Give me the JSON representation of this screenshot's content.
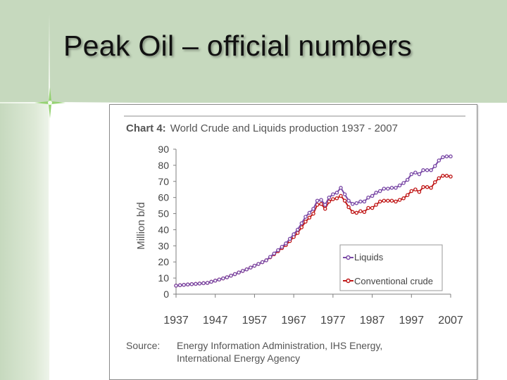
{
  "slide": {
    "title": "Peak Oil – official numbers"
  },
  "chart_data": {
    "type": "line",
    "heading_prefix": "Chart 4:",
    "title": "World Crude and Liquids production 1937 - 2007",
    "ylabel": "Million b/d",
    "xlabel": "",
    "xlim": [
      1937,
      2007
    ],
    "ylim": [
      0,
      90
    ],
    "yticks": [
      "0",
      "10",
      "20",
      "30",
      "40",
      "50",
      "60",
      "70",
      "80",
      "90"
    ],
    "xticks": [
      "1937",
      "1947",
      "1957",
      "1967",
      "1977",
      "1987",
      "1997",
      "2007"
    ],
    "grid": false,
    "legend": "center-right",
    "source_label": "Source:",
    "source_lines": [
      "Energy Information Administration, IHS Energy,",
      "International Energy Agency"
    ],
    "series": [
      {
        "name": "Liquids",
        "color": "#7a49a6",
        "points": [
          [
            1937,
            5.3
          ],
          [
            1940,
            6.0
          ],
          [
            1945,
            7.0
          ],
          [
            1950,
            10.5
          ],
          [
            1955,
            15.4
          ],
          [
            1960,
            21.0
          ],
          [
            1965,
            31.5
          ],
          [
            1968,
            40.0
          ],
          [
            1970,
            48.0
          ],
          [
            1972,
            53.0
          ],
          [
            1973,
            58.0
          ],
          [
            1974,
            58.5
          ],
          [
            1975,
            55.5
          ],
          [
            1976,
            60.0
          ],
          [
            1977,
            62.0
          ],
          [
            1978,
            63.0
          ],
          [
            1979,
            66.0
          ],
          [
            1980,
            62.0
          ],
          [
            1981,
            58.0
          ],
          [
            1982,
            56.0
          ],
          [
            1983,
            56.5
          ],
          [
            1984,
            57.5
          ],
          [
            1985,
            57.5
          ],
          [
            1986,
            60.0
          ],
          [
            1987,
            61.0
          ],
          [
            1988,
            63.0
          ],
          [
            1989,
            64.0
          ],
          [
            1990,
            65.5
          ],
          [
            1991,
            65.5
          ],
          [
            1992,
            66.0
          ],
          [
            1993,
            66.0
          ],
          [
            1994,
            67.5
          ],
          [
            1995,
            69.0
          ],
          [
            1996,
            71.0
          ],
          [
            1997,
            74.5
          ],
          [
            1998,
            75.5
          ],
          [
            1999,
            74.5
          ],
          [
            2000,
            77.0
          ],
          [
            2001,
            77.0
          ],
          [
            2002,
            77.0
          ],
          [
            2003,
            79.5
          ],
          [
            2004,
            83.0
          ],
          [
            2005,
            85.0
          ],
          [
            2006,
            85.5
          ],
          [
            2007,
            85.5
          ]
        ]
      },
      {
        "name": "Conventional crude",
        "color": "#c01818",
        "points": [
          [
            1937,
            5.3
          ],
          [
            1940,
            6.0
          ],
          [
            1945,
            7.0
          ],
          [
            1950,
            10.5
          ],
          [
            1955,
            15.4
          ],
          [
            1960,
            21.0
          ],
          [
            1965,
            30.5
          ],
          [
            1968,
            38.0
          ],
          [
            1970,
            45.0
          ],
          [
            1972,
            50.0
          ],
          [
            1973,
            55.5
          ],
          [
            1974,
            56.0
          ],
          [
            1975,
            53.0
          ],
          [
            1976,
            57.5
          ],
          [
            1977,
            59.0
          ],
          [
            1978,
            59.5
          ],
          [
            1979,
            61.0
          ],
          [
            1980,
            58.0
          ],
          [
            1981,
            54.0
          ],
          [
            1982,
            51.0
          ],
          [
            1983,
            50.5
          ],
          [
            1984,
            51.5
          ],
          [
            1985,
            51.0
          ],
          [
            1986,
            53.5
          ],
          [
            1987,
            53.5
          ],
          [
            1988,
            55.5
          ],
          [
            1989,
            57.5
          ],
          [
            1990,
            58.0
          ],
          [
            1991,
            58.0
          ],
          [
            1992,
            58.0
          ],
          [
            1993,
            57.5
          ],
          [
            1994,
            58.5
          ],
          [
            1995,
            59.5
          ],
          [
            1996,
            61.5
          ],
          [
            1997,
            64.0
          ],
          [
            1998,
            65.0
          ],
          [
            1999,
            63.5
          ],
          [
            2000,
            66.5
          ],
          [
            2001,
            66.5
          ],
          [
            2002,
            66.0
          ],
          [
            2003,
            69.5
          ],
          [
            2004,
            72.0
          ],
          [
            2005,
            73.5
          ],
          [
            2006,
            73.5
          ],
          [
            2007,
            73.0
          ]
        ]
      }
    ]
  }
}
